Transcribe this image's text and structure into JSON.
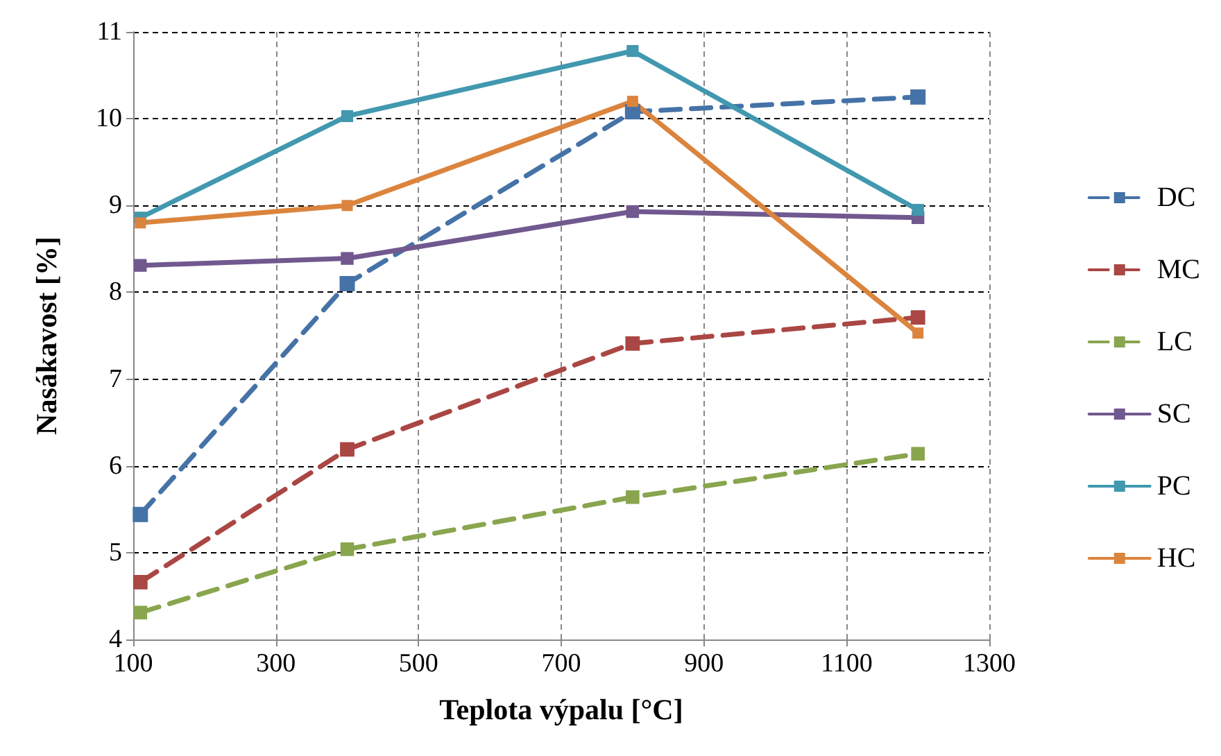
{
  "chart_data": {
    "type": "line",
    "xlabel": "Teplota výpalu [°C]",
    "ylabel": "Nasákavost [%]",
    "x": [
      110,
      400,
      800,
      1200
    ],
    "series": [
      {
        "name": "DC",
        "color": "#4572a7",
        "line_style": "dashed",
        "values": [
          5.44,
          8.1,
          10.08,
          10.25
        ]
      },
      {
        "name": "MC",
        "color": "#aa4643",
        "line_style": "dashed",
        "values": [
          4.66,
          6.19,
          7.41,
          7.71
        ]
      },
      {
        "name": "LC",
        "color": "#89a54e",
        "line_style": "dashed",
        "values": [
          4.31,
          5.04,
          5.64,
          6.14
        ]
      },
      {
        "name": "SC",
        "color": "#71588f",
        "line_style": "solid",
        "values": [
          8.31,
          8.39,
          8.93,
          8.86
        ]
      },
      {
        "name": "PC",
        "color": "#4198af",
        "line_style": "solid",
        "values": [
          8.86,
          10.03,
          10.78,
          8.95
        ]
      },
      {
        "name": "HC",
        "color": "#db843d",
        "line_style": "solid",
        "values": [
          8.8,
          9.0,
          10.2,
          7.53
        ]
      }
    ],
    "xlim": [
      100,
      1300
    ],
    "xticks": [
      100,
      300,
      500,
      700,
      900,
      1100,
      1300
    ],
    "ylim": [
      4,
      11
    ],
    "yticks": [
      4,
      5,
      6,
      7,
      8,
      9,
      10,
      11
    ],
    "grid": true,
    "legend": "right",
    "marker": "square"
  }
}
